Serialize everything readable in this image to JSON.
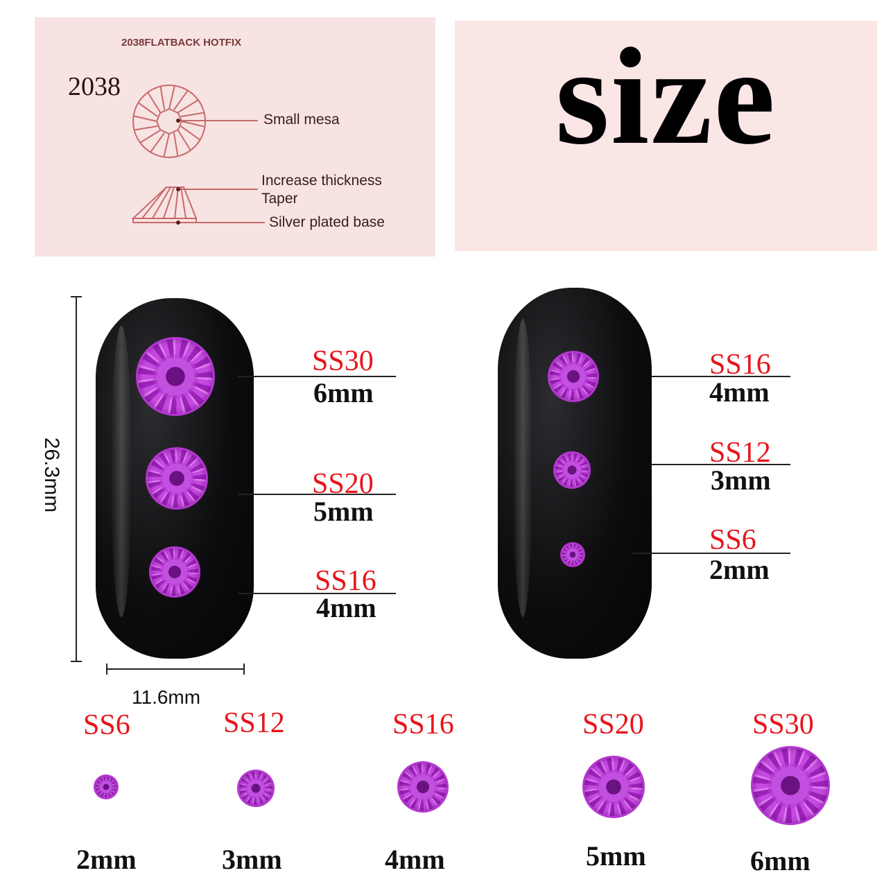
{
  "diagram": {
    "header": "2038FLATBACK HOTFIX",
    "model": "2038",
    "labels": [
      "Small mesa",
      "Increase thickness",
      "Taper",
      "Silver plated base"
    ]
  },
  "title": "size",
  "dimensions": {
    "height": "26.3mm",
    "width": "11.6mm"
  },
  "nail_left": [
    {
      "ss": "SS30",
      "mm": "6mm"
    },
    {
      "ss": "SS20",
      "mm": "5mm"
    },
    {
      "ss": "SS16",
      "mm": "4mm"
    }
  ],
  "nail_right": [
    {
      "ss": "SS16",
      "mm": "4mm"
    },
    {
      "ss": "SS12",
      "mm": "3mm"
    },
    {
      "ss": "SS6",
      "mm": "2mm"
    }
  ],
  "sizes": [
    {
      "ss": "SS6",
      "mm": "2mm"
    },
    {
      "ss": "SS12",
      "mm": "3mm"
    },
    {
      "ss": "SS16",
      "mm": "4mm"
    },
    {
      "ss": "SS20",
      "mm": "5mm"
    },
    {
      "ss": "SS30",
      "mm": "6mm"
    }
  ],
  "colors": {
    "accent": "#e8141a",
    "gem": "#b536d2",
    "panel": "#f8e3e3"
  }
}
